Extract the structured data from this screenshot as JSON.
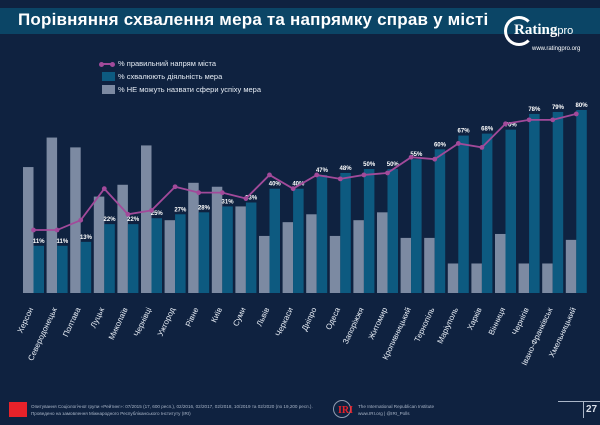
{
  "header": {
    "title": "Порівняння схвалення мера та напрямку справ у місті",
    "logo_text": "Rating",
    "logo_suffix": "pro",
    "logo_url": "www.ratingpro.org"
  },
  "colors": {
    "background": "#0f2240",
    "title_bar": "#0b4566",
    "line": "#a24a9a",
    "approve_bar": "#0d5a80",
    "cannot_name_bar": "#7c8aa2"
  },
  "chart_data": {
    "type": "bar",
    "title": "Порівняння схвалення мера та напрямку справ у місті",
    "xlabel": "",
    "ylabel": "",
    "ylim": [
      -13,
      80
    ],
    "grid": false,
    "legend_position": "top-left",
    "categories": [
      "Херсон",
      "Северодонецьк",
      "Полтава",
      "Луцьк",
      "Миколаїв",
      "Чернівці",
      "Ужгород",
      "Рівне",
      "Київ",
      "Суми",
      "Львів",
      "Черкаси",
      "Дніпро",
      "Одеса",
      "Запоріжжя",
      "Житомир",
      "Кропивницький",
      "Тернопіль",
      "Маріуполь",
      "Харків",
      "Вінниця",
      "Чернігів",
      "Івано-Франківськ",
      "Хмельницький"
    ],
    "series": [
      {
        "name": "% правильний напрям міста",
        "kind": "line",
        "values": [
          19,
          19,
          24,
          40,
          27,
          29,
          41,
          38,
          38,
          35,
          47,
          40,
          47,
          45,
          47,
          48,
          56,
          55,
          63,
          61,
          73,
          75,
          75,
          78
        ]
      },
      {
        "name": "% схвалюють діяльність мера",
        "kind": "bar",
        "labeled": true,
        "values": [
          11,
          11,
          13,
          22,
          22,
          25,
          27,
          28,
          31,
          33,
          40,
          40,
          47,
          48,
          50,
          50,
          55,
          60,
          67,
          68,
          70,
          78,
          79,
          80
        ]
      },
      {
        "name": "% НЕ можуть назвати сфери успіху мера",
        "kind": "bar",
        "values": [
          51,
          66,
          61,
          36,
          42,
          62,
          24,
          43,
          41,
          31,
          16,
          23,
          27,
          16,
          24,
          28,
          15,
          15,
          2,
          2,
          17,
          2,
          2,
          14
        ]
      }
    ]
  },
  "legend": [
    {
      "label": "% правильний напрям міста"
    },
    {
      "label": "% схвалюють діяльність мера"
    },
    {
      "label": "% НЕ можуть назвати сфери успіху мера"
    }
  ],
  "footer": {
    "source_line1": "Опитування Соціологічної групи «Рейтинг»: 07/2015 (17, 600 респ.), 02/2016, 02/2017, 02/2018, 10/2019 та 02/2020 (по 19,200 респ.).",
    "source_line2": "Проведено на замовлення Міжнародного Республіканського Інституту (IRI)",
    "iri_logo": "IRI",
    "iri_name": "The International Republican Institute",
    "iri_links": "www.IRI.org | @IRI_Polls",
    "page_number": "27"
  }
}
